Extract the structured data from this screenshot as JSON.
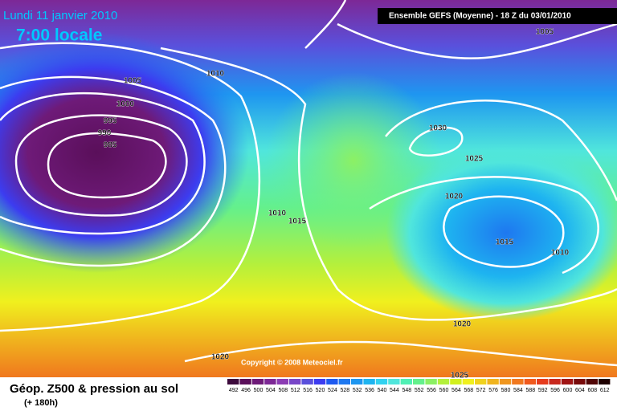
{
  "header": {
    "date": "Lundi 11 janvier 2010",
    "time": "7:00 locale",
    "run": "Ensemble GEFS (Moyenne)  - 18 Z du 03/01/2010",
    "copyright": "Copyright © 2008 Meteociel.fr"
  },
  "footer": {
    "title": "Géop. Z500 & pression au sol",
    "lead": "(+ 180h)"
  },
  "isobar_labels": [
    1005,
    1010,
    1005,
    1000,
    995,
    990,
    985,
    1010,
    1015,
    1030,
    1025,
    1020,
    1015,
    1010,
    1020,
    1020,
    1025
  ],
  "colorbar": {
    "values": [
      492,
      496,
      500,
      504,
      508,
      512,
      516,
      520,
      524,
      528,
      532,
      536,
      540,
      544,
      548,
      552,
      556,
      560,
      564,
      568,
      572,
      576,
      580,
      584,
      588,
      592,
      596,
      600,
      604,
      608,
      612
    ],
    "colors": [
      "#3c0a3c",
      "#5a0f5a",
      "#6e1a78",
      "#7d2896",
      "#8c3cb4",
      "#7846c8",
      "#5a50dc",
      "#3c3cf0",
      "#1e5af0",
      "#1e78f0",
      "#1e96f0",
      "#1eb4f0",
      "#32d2f0",
      "#50e6dc",
      "#50f0b4",
      "#64f08c",
      "#8cf064",
      "#b4f03c",
      "#d2f01e",
      "#f0f01e",
      "#f0d21e",
      "#f0b41e",
      "#f0961e",
      "#f0781e",
      "#f05a1e",
      "#e63c1e",
      "#c8281e",
      "#a01414",
      "#780a0a",
      "#500505",
      "#1e0000"
    ]
  }
}
